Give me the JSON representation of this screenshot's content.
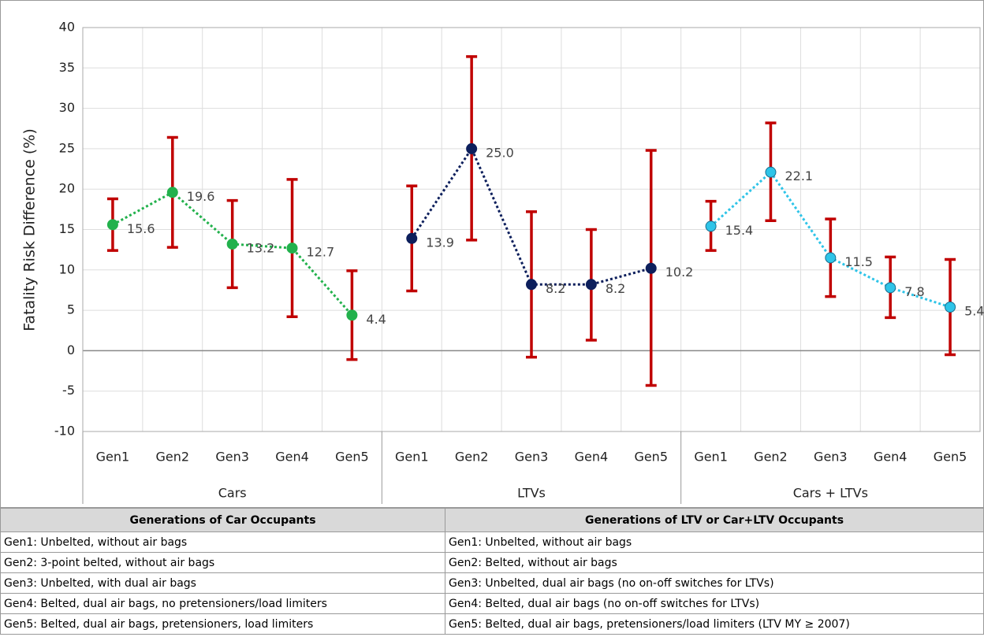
{
  "chart_data": {
    "type": "line-errorbar",
    "y_label": "Fatality Risk Difference (%)",
    "categories": [
      "Gen1",
      "Gen2",
      "Gen3",
      "Gen4",
      "Gen5"
    ],
    "ylim": [
      -10,
      40
    ],
    "yticks": [
      -10,
      -5,
      0,
      5,
      10,
      15,
      20,
      25,
      30,
      35,
      40
    ],
    "grid": true,
    "error_color": "#c00000",
    "series": [
      {
        "name": "Cars",
        "color": "#22b14c",
        "values": [
          15.6,
          19.6,
          13.2,
          12.7,
          4.4
        ],
        "low": [
          12.4,
          12.8,
          7.8,
          4.2,
          -1.1
        ],
        "high": [
          18.8,
          26.4,
          18.6,
          21.2,
          9.9
        ]
      },
      {
        "name": "LTVs",
        "color": "#0d1f5c",
        "values": [
          13.9,
          25,
          8.2,
          8.2,
          10.2
        ],
        "value_labels": [
          "13.9",
          "25.0",
          "8.2",
          "8.2",
          "10.2"
        ],
        "low": [
          7.4,
          13.7,
          -0.8,
          1.3,
          -4.3
        ],
        "high": [
          20.4,
          36.4,
          17.2,
          15.0,
          24.8
        ]
      },
      {
        "name": "Cars + LTVs",
        "color": "#2ec4e8",
        "values": [
          15.4,
          22.1,
          11.5,
          7.8,
          5.4
        ],
        "low": [
          12.4,
          16.1,
          6.7,
          4.1,
          -0.5
        ],
        "high": [
          18.5,
          28.2,
          16.3,
          11.6,
          11.3
        ]
      }
    ]
  },
  "table": {
    "header": [
      "Generations of Car Occupants",
      "Generations of LTV or Car+LTV Occupants"
    ],
    "rows": [
      [
        "Gen1: Unbelted, without air bags",
        "Gen1: Unbelted, without air bags"
      ],
      [
        "Gen2: 3-point belted, without air bags",
        "Gen2: Belted, without air bags"
      ],
      [
        "Gen3: Unbelted, with dual air bags",
        "Gen3: Unbelted, dual air bags (no on-off switches for LTVs)"
      ],
      [
        "Gen4: Belted, dual air bags, no pretensioners/load limiters",
        "Gen4: Belted, dual air bags (no on-off switches for LTVs)"
      ],
      [
        "Gen5: Belted, dual air bags, pretensioners, load limiters",
        "Gen5: Belted, dual air bags, pretensioners/load limiters (LTV MY ≥ 2007)"
      ]
    ]
  }
}
